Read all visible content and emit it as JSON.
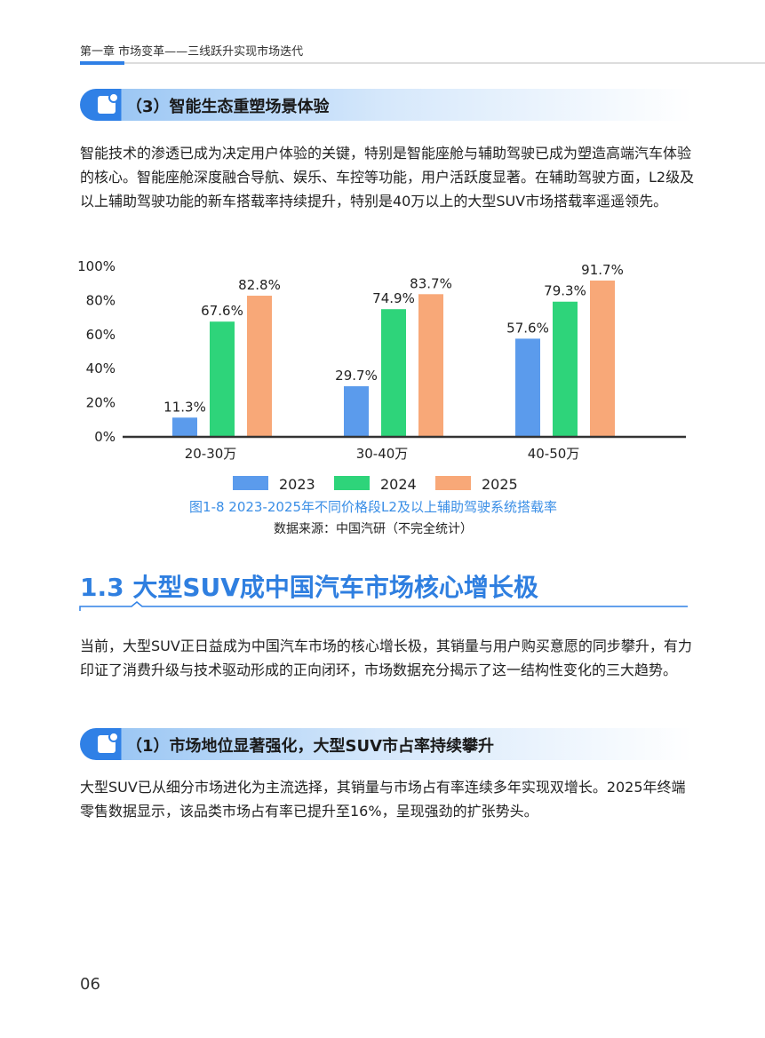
{
  "header": {
    "chapter": "第一章 市场变革——三线跃升实现市场迭代"
  },
  "section_3": {
    "title": "（3）智能生态重塑场景体验",
    "paragraph": "智能技术的渗透已成为决定用户体验的关键，特别是智能座舱与辅助驾驶已成为塑造高端汽车体验的核心。智能座舱深度融合导航、娱乐、车控等功能，用户活跃度显著。在辅助驾驶方面，L2级及以上辅助驾驶功能的新车搭载率持续提升，特别是40万以上的大型SUV市场搭载率遥遥领先。"
  },
  "chart_data": {
    "type": "bar",
    "title": "图1-8 2023-2025年不同价格段L2及以上辅助驾驶系统搭载率",
    "source": "数据来源：中国汽研（不完全统计）",
    "categories": [
      "20-30万",
      "30-40万",
      "40-50万"
    ],
    "series": [
      {
        "name": "2023",
        "color": "#5b9bec",
        "values": [
          11.3,
          29.7,
          57.6
        ],
        "value_labels": [
          "11.3%",
          "29.7%",
          "57.6%"
        ]
      },
      {
        "name": "2024",
        "color": "#2ed47a",
        "values": [
          67.6,
          74.9,
          79.3
        ],
        "value_labels": [
          "67.6%",
          "74.9%",
          "79.3%"
        ]
      },
      {
        "name": "2025",
        "color": "#f8a878",
        "values": [
          82.8,
          83.7,
          91.7
        ],
        "value_labels": [
          "82.8%",
          "83.7%",
          "91.7%"
        ]
      }
    ],
    "ylim": [
      0,
      100
    ],
    "yticks": [
      {
        "value": 0,
        "label": "0%"
      },
      {
        "value": 20,
        "label": "20%"
      },
      {
        "value": 40,
        "label": "40%"
      },
      {
        "value": 60,
        "label": "60%"
      },
      {
        "value": 80,
        "label": "80%"
      },
      {
        "value": 100,
        "label": "100%"
      }
    ]
  },
  "section_1_3": {
    "title": "1.3 大型SUV成中国汽车市场核心增长极",
    "paragraph": "当前，大型SUV正日益成为中国汽车市场的核心增长极，其销量与用户购买意愿的同步攀升，有力印证了消费升级与技术驱动形成的正向闭环，市场数据充分揭示了这一结构性变化的三大趋势。"
  },
  "subsection_1": {
    "title": "（1）市场地位显著强化，大型SUV市占率持续攀升",
    "paragraph": "大型SUV已从细分市场进化为主流选择，其销量与市场占有率连续多年实现双增长。2025年终端零售数据显示，该品类市场占有率已提升至16%，呈现强劲的扩张势头。"
  },
  "page_number": "06"
}
